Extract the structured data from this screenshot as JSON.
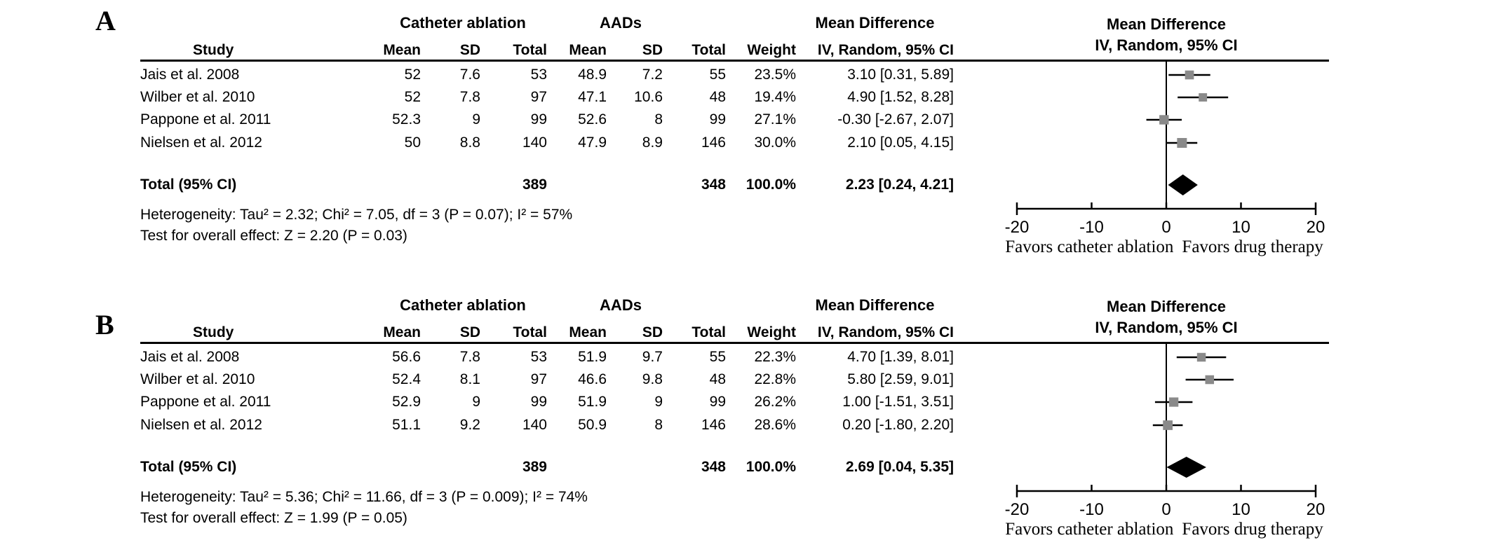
{
  "chart_data": [
    {
      "type": "forest",
      "panel_label": "A",
      "group_headers": {
        "treatment": "Catheter ablation",
        "control": "AADs",
        "effect": "Mean Difference"
      },
      "columns": {
        "study": "Study",
        "mean": "Mean",
        "sd": "SD",
        "total": "Total",
        "weight": "Weight",
        "effect_ci": "IV, Random, 95% CI"
      },
      "plot_header": {
        "line1": "Mean Difference",
        "line2": "IV, Random, 95% CI"
      },
      "studies": [
        {
          "name": "Jais et al. 2008",
          "mean1": "52",
          "sd1": "7.6",
          "total1": "53",
          "mean2": "48.9",
          "sd2": "7.2",
          "total2": "55",
          "weight": "23.5%",
          "weight_value": 23.5,
          "effect_text": "3.10 [0.31, 5.89]",
          "estimate": 3.1,
          "ci_low": 0.31,
          "ci_high": 5.89
        },
        {
          "name": "Wilber et al. 2010",
          "mean1": "52",
          "sd1": "7.8",
          "total1": "97",
          "mean2": "47.1",
          "sd2": "10.6",
          "total2": "48",
          "weight": "19.4%",
          "weight_value": 19.4,
          "effect_text": "4.90 [1.52, 8.28]",
          "estimate": 4.9,
          "ci_low": 1.52,
          "ci_high": 8.28
        },
        {
          "name": "Pappone et al. 2011",
          "mean1": "52.3",
          "sd1": "9",
          "total1": "99",
          "mean2": "52.6",
          "sd2": "8",
          "total2": "99",
          "weight": "27.1%",
          "weight_value": 27.1,
          "effect_text": "-0.30 [-2.67, 2.07]",
          "estimate": -0.3,
          "ci_low": -2.67,
          "ci_high": 2.07
        },
        {
          "name": "Nielsen et al. 2012",
          "mean1": "50",
          "sd1": "8.8",
          "total1": "140",
          "mean2": "47.9",
          "sd2": "8.9",
          "total2": "146",
          "weight": "30.0%",
          "weight_value": 30.0,
          "effect_text": "2.10 [0.05, 4.15]",
          "estimate": 2.1,
          "ci_low": 0.05,
          "ci_high": 4.15
        }
      ],
      "total": {
        "label": "Total (95% CI)",
        "total1": "389",
        "total2": "348",
        "weight": "100.0%",
        "effect_text": "2.23 [0.24, 4.21]",
        "estimate": 2.23,
        "ci_low": 0.24,
        "ci_high": 4.21
      },
      "heterogeneity": "Heterogeneity: Tau² = 2.32; Chi² = 7.05, df = 3 (P = 0.07); I² = 57%",
      "overall_effect": "Test for overall effect: Z = 2.20 (P = 0.03)",
      "axis": {
        "min": -20,
        "max": 20,
        "ticks": [
          -20,
          -10,
          0,
          10,
          20
        ]
      },
      "favors_left": "Favors catheter ablation",
      "favors_right": "Favors drug therapy",
      "marker_color": "#8a8a8a",
      "line_color": "#000000"
    },
    {
      "type": "forest",
      "panel_label": "B",
      "group_headers": {
        "treatment": "Catheter ablation",
        "control": "AADs",
        "effect": "Mean Difference"
      },
      "columns": {
        "study": "Study",
        "mean": "Mean",
        "sd": "SD",
        "total": "Total",
        "weight": "Weight",
        "effect_ci": "IV, Random, 95% CI"
      },
      "plot_header": {
        "line1": "Mean Difference",
        "line2": "IV, Random, 95% CI"
      },
      "studies": [
        {
          "name": "Jais et al. 2008",
          "mean1": "56.6",
          "sd1": "7.8",
          "total1": "53",
          "mean2": "51.9",
          "sd2": "9.7",
          "total2": "55",
          "weight": "22.3%",
          "weight_value": 22.3,
          "effect_text": "4.70 [1.39, 8.01]",
          "estimate": 4.7,
          "ci_low": 1.39,
          "ci_high": 8.01
        },
        {
          "name": "Wilber et al. 2010",
          "mean1": "52.4",
          "sd1": "8.1",
          "total1": "97",
          "mean2": "46.6",
          "sd2": "9.8",
          "total2": "48",
          "weight": "22.8%",
          "weight_value": 22.8,
          "effect_text": "5.80 [2.59, 9.01]",
          "estimate": 5.8,
          "ci_low": 2.59,
          "ci_high": 9.01
        },
        {
          "name": "Pappone et al. 2011",
          "mean1": "52.9",
          "sd1": "9",
          "total1": "99",
          "mean2": "51.9",
          "sd2": "9",
          "total2": "99",
          "weight": "26.2%",
          "weight_value": 26.2,
          "effect_text": "1.00 [-1.51, 3.51]",
          "estimate": 1.0,
          "ci_low": -1.51,
          "ci_high": 3.51
        },
        {
          "name": "Nielsen et al. 2012",
          "mean1": "51.1",
          "sd1": "9.2",
          "total1": "140",
          "mean2": "50.9",
          "sd2": "8",
          "total2": "146",
          "weight": "28.6%",
          "weight_value": 28.6,
          "effect_text": "0.20 [-1.80, 2.20]",
          "estimate": 0.2,
          "ci_low": -1.8,
          "ci_high": 2.2
        }
      ],
      "total": {
        "label": "Total (95% CI)",
        "total1": "389",
        "total2": "348",
        "weight": "100.0%",
        "effect_text": "2.69 [0.04, 5.35]",
        "estimate": 2.69,
        "ci_low": 0.04,
        "ci_high": 5.35
      },
      "heterogeneity": "Heterogeneity: Tau² = 5.36; Chi² = 11.66, df = 3 (P = 0.009); I² = 74%",
      "overall_effect": "Test for overall effect: Z = 1.99 (P = 0.05)",
      "axis": {
        "min": -20,
        "max": 20,
        "ticks": [
          -20,
          -10,
          0,
          10,
          20
        ]
      },
      "favors_left": "Favors catheter ablation",
      "favors_right": "Favors drug therapy",
      "marker_color": "#8a8a8a",
      "line_color": "#000000"
    }
  ]
}
